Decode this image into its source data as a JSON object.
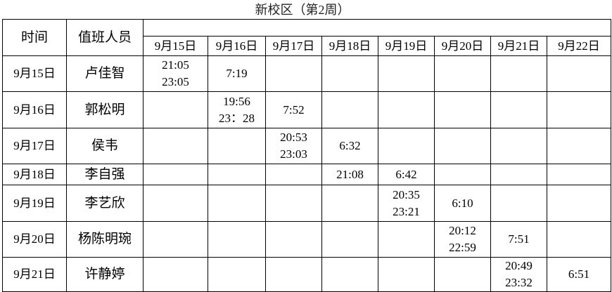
{
  "title": "新校区（第2周）",
  "headers": {
    "time": "时间",
    "staff": "值班人员",
    "dates": [
      "9月15日",
      "9月16日",
      "9月17日",
      "9月18日",
      "9月19日",
      "9月20日",
      "9月21日",
      "9月22日"
    ]
  },
  "rows": [
    {
      "date": "9月15日",
      "name": "卢佳智",
      "cells": [
        [
          "21:05",
          "23:05"
        ],
        [
          "7:19"
        ],
        [],
        [],
        [],
        [],
        [],
        []
      ]
    },
    {
      "date": "9月16日",
      "name": "郭松明",
      "cells": [
        [],
        [
          "19:56",
          "23：28"
        ],
        [
          "7:52"
        ],
        [],
        [],
        [],
        [],
        []
      ]
    },
    {
      "date": "9月17日",
      "name": "侯韦",
      "cells": [
        [],
        [],
        [
          "20:53",
          "23:03"
        ],
        [
          "6:32"
        ],
        [],
        [],
        [],
        []
      ]
    },
    {
      "date": "9月18日",
      "name": "李自强",
      "cells": [
        [],
        [],
        [],
        [
          "21:08"
        ],
        [
          "6:42"
        ],
        [],
        [],
        []
      ]
    },
    {
      "date": "9月19日",
      "name": "李艺欣",
      "cells": [
        [],
        [],
        [],
        [],
        [
          "20:35",
          "23:21"
        ],
        [
          "6:10"
        ],
        [],
        []
      ]
    },
    {
      "date": "9月20日",
      "name": "杨陈明琬",
      "cells": [
        [],
        [],
        [],
        [],
        [],
        [
          "20:12",
          "22:59"
        ],
        [
          "7:51"
        ],
        []
      ]
    },
    {
      "date": "9月21日",
      "name": "许静婷",
      "cells": [
        [],
        [],
        [],
        [],
        [],
        [],
        [
          "20:49",
          "23:32"
        ],
        [
          "6:51"
        ]
      ]
    }
  ]
}
